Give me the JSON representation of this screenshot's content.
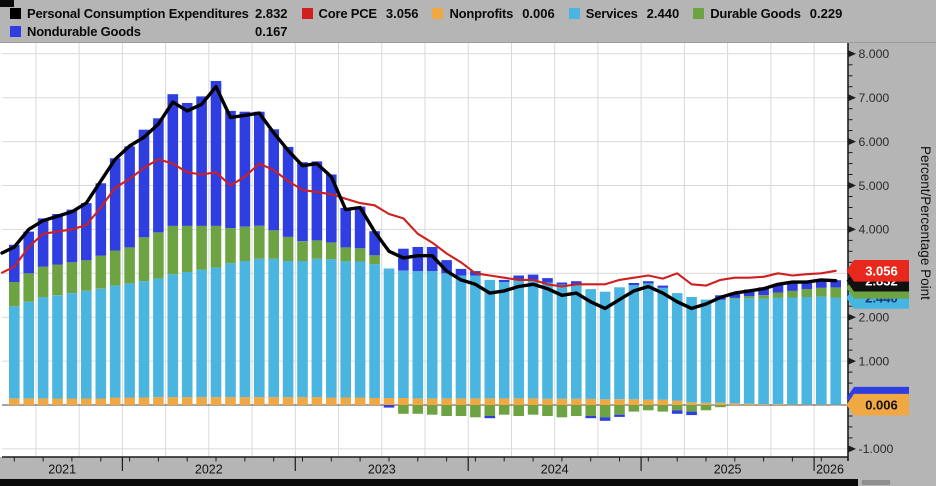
{
  "y_axis": {
    "title": "Percent/Percentage Point",
    "tick_values": [
      8,
      7,
      6,
      5,
      4,
      3,
      2,
      1,
      0,
      -1
    ],
    "tick_labels": [
      "8.000",
      "7.000",
      "6.000",
      "5.000",
      "4.000",
      "3.000",
      "2.000",
      "1.000",
      "0.000",
      "-1.000"
    ]
  },
  "x_axis": {
    "year_labels": [
      "2021",
      "2022",
      "2023",
      "2024",
      "2025",
      "2026"
    ]
  },
  "legend": {
    "rows": [
      [
        {
          "label": "Personal Consumption Expenditures",
          "value": "2.832",
          "color": "pce_line",
          "wide": true
        },
        {
          "label": "Core PCE",
          "value": "3.056",
          "color": "core_line"
        },
        {
          "label": "Nonprofits",
          "value": "0.006",
          "color": "nonprofits"
        },
        {
          "label": "Services",
          "value": "2.440",
          "color": "services"
        },
        {
          "label": "Durable Goods",
          "value": "0.229",
          "color": "durable"
        }
      ],
      [
        {
          "label": "Nondurable Goods",
          "value": "0.167",
          "color": "nondurable",
          "wide": true
        }
      ]
    ]
  },
  "badges": [
    {
      "at": 2.44,
      "text": "2.440",
      "bg": "badge_cyan",
      "fg": "#14357a"
    },
    {
      "at": 2.669,
      "text": "",
      "bg": "badge_green",
      "fg": "#ffffff"
    },
    {
      "at": 2.832,
      "text": "2.832",
      "bg": "badge_black",
      "fg": "#ffffff"
    },
    {
      "at": 3.056,
      "text": "3.056",
      "bg": "badge_red",
      "fg": "#ffffff"
    },
    {
      "at": 0.167,
      "text": "",
      "bg": "badge_blue",
      "fg": "#ffffff"
    },
    {
      "at": 0.006,
      "text": "0.006",
      "bg": "badge_orange",
      "fg": "#111111"
    }
  ],
  "colors": {
    "chrome": "#b5b5b5",
    "plot_bg": "#ffffff",
    "grid": "#d9d9d9",
    "zero_line": "#4a4a4a",
    "axis": "#1c1c1c",
    "tick_label": "#2b2b2b",
    "year_label": "#111111",
    "services": "#49b5e0",
    "durable": "#6ea343",
    "nondurable": "#2e3ee0",
    "nonprofits": "#f0a843",
    "pce_line": "#000000",
    "core_line": "#cf1f1f",
    "badge_red": "#e8271d",
    "badge_black": "#111111",
    "badge_cyan": "#45b6e2",
    "badge_green": "#6ea343",
    "badge_blue": "#2e3ee0",
    "badge_orange": "#f0a843"
  },
  "chart_data": {
    "type": "stacked_bar_with_lines",
    "months": 58,
    "x_span_years": [
      2021,
      2026
    ],
    "ylim": [
      -1.27,
      8.3
    ],
    "y_ticks": [
      8,
      7,
      6,
      5,
      4,
      3,
      2,
      1,
      0,
      -1
    ],
    "year_boundaries_idx": [
      8,
      20,
      32,
      44,
      56
    ],
    "stack_order": [
      "nonprofits",
      "services",
      "durable_goods",
      "nondurable_goods"
    ],
    "bars": {
      "nonprofits": [
        0.15,
        0.15,
        0.15,
        0.15,
        0.15,
        0.15,
        0.15,
        0.17,
        0.17,
        0.17,
        0.18,
        0.18,
        0.18,
        0.18,
        0.18,
        0.18,
        0.18,
        0.18,
        0.18,
        0.18,
        0.18,
        0.18,
        0.17,
        0.17,
        0.17,
        0.16,
        0.16,
        0.16,
        0.15,
        0.15,
        0.15,
        0.15,
        0.15,
        0.15,
        0.15,
        0.15,
        0.15,
        0.14,
        0.14,
        0.14,
        0.14,
        0.13,
        0.13,
        0.13,
        0.12,
        0.12,
        0.1,
        0.06,
        0.05,
        0.05,
        0.04,
        0.03,
        0.02,
        0.02,
        0.01,
        0.01,
        0.01,
        0.006
      ],
      "services": [
        2.1,
        2.2,
        2.3,
        2.35,
        2.4,
        2.45,
        2.5,
        2.55,
        2.6,
        2.65,
        2.7,
        2.8,
        2.85,
        2.9,
        2.95,
        3.05,
        3.1,
        3.15,
        3.15,
        3.1,
        3.1,
        3.15,
        3.15,
        3.1,
        3.1,
        3.05,
        2.95,
        2.9,
        2.9,
        2.9,
        2.85,
        2.8,
        2.8,
        2.7,
        2.65,
        2.7,
        2.7,
        2.65,
        2.6,
        2.6,
        2.5,
        2.45,
        2.55,
        2.6,
        2.65,
        2.55,
        2.45,
        2.4,
        2.35,
        2.35,
        2.38,
        2.4,
        2.4,
        2.42,
        2.44,
        2.45,
        2.46,
        2.44
      ],
      "durable_goods": [
        0.55,
        0.65,
        0.7,
        0.7,
        0.7,
        0.7,
        0.75,
        0.8,
        0.82,
        1.0,
        1.05,
        1.1,
        1.05,
        1.0,
        0.95,
        0.8,
        0.78,
        0.75,
        0.65,
        0.55,
        0.45,
        0.42,
        0.38,
        0.32,
        0.3,
        0.2,
        0.0,
        -0.2,
        -0.2,
        -0.22,
        -0.25,
        -0.25,
        -0.28,
        -0.25,
        -0.22,
        -0.25,
        -0.22,
        -0.25,
        -0.28,
        -0.25,
        -0.25,
        -0.28,
        -0.22,
        -0.15,
        -0.12,
        -0.15,
        -0.12,
        -0.15,
        -0.12,
        -0.05,
        0.02,
        0.05,
        0.08,
        0.12,
        0.15,
        0.18,
        0.2,
        0.229
      ],
      "nondurable_goods": [
        0.85,
        0.95,
        1.1,
        1.15,
        1.2,
        1.3,
        1.65,
        2.1,
        2.3,
        2.45,
        2.6,
        3.0,
        2.8,
        2.95,
        3.3,
        2.67,
        2.62,
        2.6,
        2.3,
        2.05,
        1.8,
        1.8,
        1.55,
        0.9,
        0.95,
        0.55,
        -0.06,
        0.5,
        0.55,
        0.55,
        0.3,
        0.15,
        0.1,
        -0.05,
        0.05,
        0.1,
        0.12,
        0.1,
        0.05,
        0.08,
        -0.05,
        -0.08,
        -0.05,
        0.05,
        0.05,
        0.05,
        -0.08,
        -0.08,
        0.0,
        0.1,
        0.12,
        0.15,
        0.18,
        0.2,
        0.2,
        0.18,
        0.18,
        0.167
      ]
    },
    "lines": {
      "pce": [
        3.6,
        4.0,
        4.2,
        4.3,
        4.4,
        4.6,
        5.1,
        5.6,
        5.9,
        6.1,
        6.4,
        6.9,
        6.7,
        6.85,
        7.25,
        6.55,
        6.6,
        6.65,
        6.2,
        5.8,
        5.45,
        5.5,
        5.2,
        4.45,
        4.5,
        3.95,
        3.5,
        3.35,
        3.4,
        3.4,
        3.05,
        2.85,
        2.75,
        2.55,
        2.6,
        2.7,
        2.75,
        2.65,
        2.5,
        2.55,
        2.35,
        2.2,
        2.4,
        2.6,
        2.7,
        2.55,
        2.35,
        2.2,
        2.3,
        2.45,
        2.55,
        2.6,
        2.65,
        2.75,
        2.8,
        2.8,
        2.85,
        2.832
      ],
      "core_pce": [
        3.15,
        3.6,
        3.9,
        3.95,
        4.0,
        4.1,
        4.5,
        4.95,
        5.15,
        5.4,
        5.6,
        5.5,
        5.3,
        5.25,
        5.3,
        5.0,
        5.2,
        5.5,
        5.35,
        5.1,
        4.9,
        4.85,
        4.8,
        4.7,
        4.6,
        4.55,
        4.35,
        4.25,
        3.9,
        3.7,
        3.45,
        3.25,
        3.0,
        2.95,
        2.9,
        2.85,
        2.85,
        2.75,
        2.7,
        2.75,
        2.75,
        2.75,
        2.85,
        2.9,
        2.95,
        2.88,
        3.0,
        2.75,
        2.72,
        2.85,
        2.9,
        2.9,
        2.92,
        3.0,
        2.95,
        2.98,
        3.0,
        3.056
      ]
    },
    "series_latest": {
      "personal_consumption_expenditures": 2.832,
      "core_pce": 3.056,
      "nonprofits": 0.006,
      "services": 2.44,
      "durable_goods": 0.229,
      "nondurable_goods": 0.167
    }
  }
}
